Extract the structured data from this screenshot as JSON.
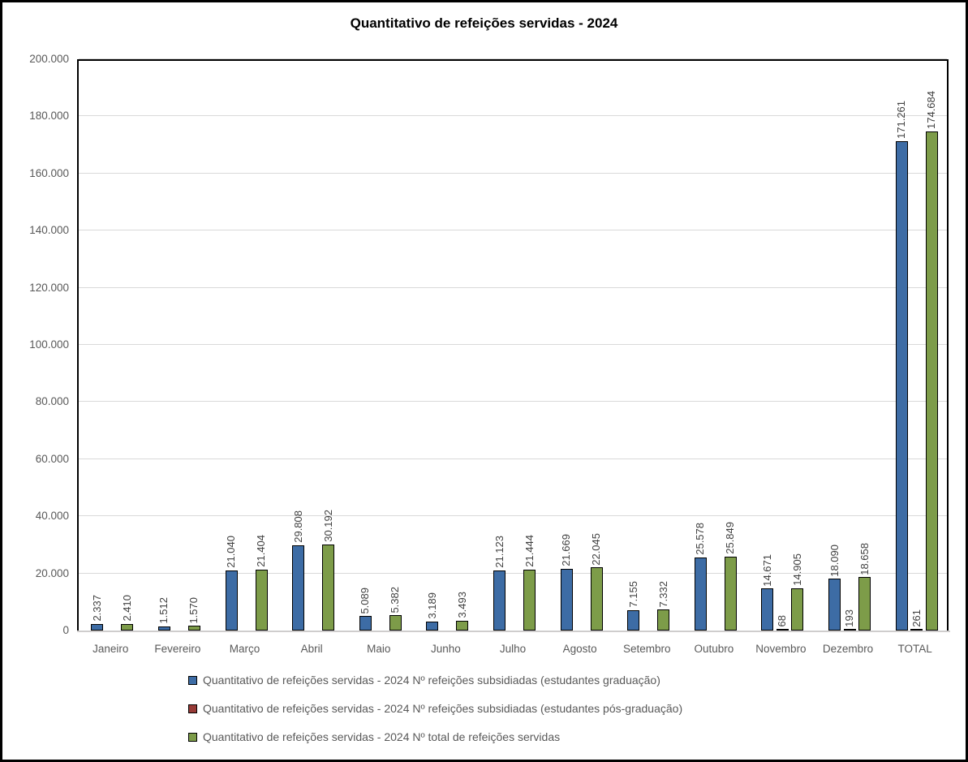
{
  "title": "Quantitativo de refeições servidas - 2024",
  "colors": {
    "series_graduacao": "#3d6ca5",
    "series_pos_graduacao": "#973a36",
    "series_total": "#7d9c49",
    "bar_border": "#000000",
    "gridline": "#d9d9d9",
    "axis_line": "#cfcdcd",
    "axis_text": "#595959",
    "data_label_text": "#404040",
    "frame_border": "#000000",
    "background": "#ffffff"
  },
  "chart_data": {
    "type": "bar",
    "title": "Quantitativo de refeições servidas - 2024",
    "xlabel": "",
    "ylabel": "",
    "ylim": [
      0,
      200000
    ],
    "ytick_step": 20000,
    "ytick_labels": [
      "0",
      "20.000",
      "40.000",
      "60.000",
      "80.000",
      "100.000",
      "120.000",
      "140.000",
      "160.000",
      "180.000",
      "200.000"
    ],
    "grid": true,
    "legend_position": "bottom",
    "data_label_rotation": 90,
    "categories": [
      "Janeiro",
      "Fevereiro",
      "Março",
      "Abril",
      "Maio",
      "Junho",
      "Julho",
      "Agosto",
      "Setembro",
      "Outubro",
      "Novembro",
      "Dezembro",
      "TOTAL"
    ],
    "series": [
      {
        "key": "graduacao",
        "name": "Quantitativo de refeições servidas - 2024 Nº refeições subsidiadas (estudantes graduação)",
        "color": "#3d6ca5",
        "values": [
          2337,
          1512,
          21040,
          29808,
          5089,
          3189,
          21123,
          21669,
          7155,
          25578,
          14671,
          18090,
          171261
        ],
        "labels": [
          "2.337",
          "1.512",
          "21.040",
          "29.808",
          "5.089",
          "3.189",
          "21.123",
          "21.669",
          "7.155",
          "25.578",
          "14.671",
          "18.090",
          "171.261"
        ]
      },
      {
        "key": "pos-graduacao",
        "name": "Quantitativo de refeições servidas - 2024 Nº refeições subsidiadas (estudantes pós-graduação)",
        "color": "#973a36",
        "values": [
          null,
          null,
          null,
          null,
          null,
          null,
          null,
          null,
          null,
          null,
          68,
          193,
          261
        ],
        "labels": [
          null,
          null,
          null,
          null,
          null,
          null,
          null,
          null,
          null,
          null,
          "68",
          "193",
          "261"
        ]
      },
      {
        "key": "total",
        "name": "Quantitativo de refeições servidas - 2024 Nº total de refeições servidas",
        "color": "#7d9c49",
        "values": [
          2410,
          1570,
          21404,
          30192,
          5382,
          3493,
          21444,
          22045,
          7332,
          25849,
          14905,
          18658,
          174684
        ],
        "labels": [
          "2.410",
          "1.570",
          "21.404",
          "30.192",
          "5.382",
          "3.493",
          "21.444",
          "22.045",
          "7.332",
          "25.849",
          "14.905",
          "18.658",
          "174.684"
        ]
      }
    ]
  }
}
